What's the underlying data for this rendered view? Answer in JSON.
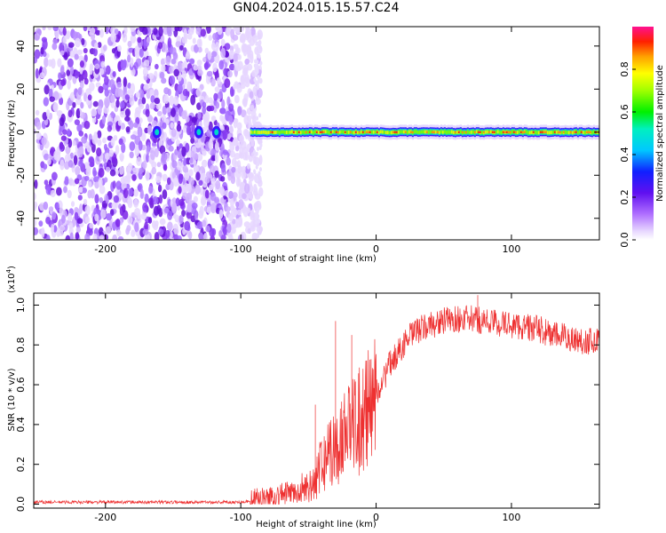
{
  "title": "GN04.2024.015.15.57.C24",
  "chart_data": [
    {
      "type": "heatmap",
      "title": "GN04.2024.015.15.57.C24",
      "xlabel": "Height of straight line (km)",
      "ylabel": "Frequency (Hz)",
      "xlim": [
        -253,
        165
      ],
      "ylim": [
        -50,
        49
      ],
      "xticks": [
        -200,
        -100,
        0,
        100
      ],
      "xtick_labels": [
        "-200",
        "-100",
        "0",
        "100"
      ],
      "yticks": [
        -40,
        -20,
        0,
        20,
        40
      ],
      "ytick_labels": [
        "-40",
        "-20",
        "0",
        "20",
        "40"
      ],
      "colorbar": {
        "label": "Normalized spectral amplitude",
        "range": [
          0,
          1
        ],
        "ticks": [
          0.0,
          0.2,
          0.4,
          0.6,
          0.8
        ],
        "tick_labels": [
          "0.0",
          "0.2",
          "0.4",
          "0.6",
          "0.8"
        ],
        "colormap": "rainbow (white-purple-blue-cyan-green-yellow-orange-red-magenta)"
      },
      "description_regions": [
        {
          "x_range": [
            -253,
            -93
          ],
          "pattern": "broadband noise speckle",
          "amplitude": [
            0.0,
            0.25
          ]
        },
        {
          "x_range": [
            -93,
            165
          ],
          "pattern": "narrow carrier line near 0 Hz",
          "center_hz": 0,
          "amplitude": [
            0.6,
            1.0
          ]
        }
      ],
      "grid": false
    },
    {
      "type": "line",
      "xlabel": "Height of straight line (km)",
      "ylabel": "SNR (10 * v/v)",
      "y_multiplier": "(x10^4)",
      "y_multiplier_parts": {
        "base": "(x10",
        "exp": "4",
        "close": ")"
      },
      "xlim": [
        -253,
        165
      ],
      "ylim": [
        -0.02,
        1.06
      ],
      "xticks": [
        -200,
        -100,
        0,
        100
      ],
      "xtick_labels": [
        "-200",
        "-100",
        "0",
        "100"
      ],
      "yticks": [
        0.0,
        0.2,
        0.4,
        0.6,
        0.8,
        1.0
      ],
      "ytick_labels": [
        "0.0",
        "0.2",
        "0.4",
        "0.6",
        "0.8",
        "1.0"
      ],
      "series": [
        {
          "color": "#ee3030",
          "x": [
            -253,
            -200,
            -150,
            -100,
            -93,
            -80,
            -70,
            -60,
            -50,
            -45,
            -40,
            -35,
            -30,
            -25,
            -20,
            -15,
            -10,
            -5,
            0,
            5,
            10,
            15,
            20,
            25,
            30,
            40,
            50,
            60,
            70,
            80,
            90,
            100,
            110,
            120,
            130,
            140,
            150,
            160,
            165
          ],
          "y": [
            0.01,
            0.01,
            0.01,
            0.01,
            0.015,
            0.03,
            0.05,
            0.06,
            0.1,
            0.14,
            0.2,
            0.25,
            0.3,
            0.35,
            0.4,
            0.42,
            0.46,
            0.5,
            0.56,
            0.62,
            0.7,
            0.75,
            0.8,
            0.84,
            0.87,
            0.9,
            0.92,
            0.93,
            0.93,
            0.92,
            0.91,
            0.9,
            0.89,
            0.88,
            0.85,
            0.84,
            0.82,
            0.82,
            0.82
          ],
          "spikes": [
            {
              "x": -30,
              "y": 0.92
            },
            {
              "x": -18,
              "y": 0.85
            },
            {
              "x": -45,
              "y": 0.5
            },
            {
              "x": 75,
              "y": 1.05
            }
          ]
        }
      ],
      "grid": false
    }
  ]
}
